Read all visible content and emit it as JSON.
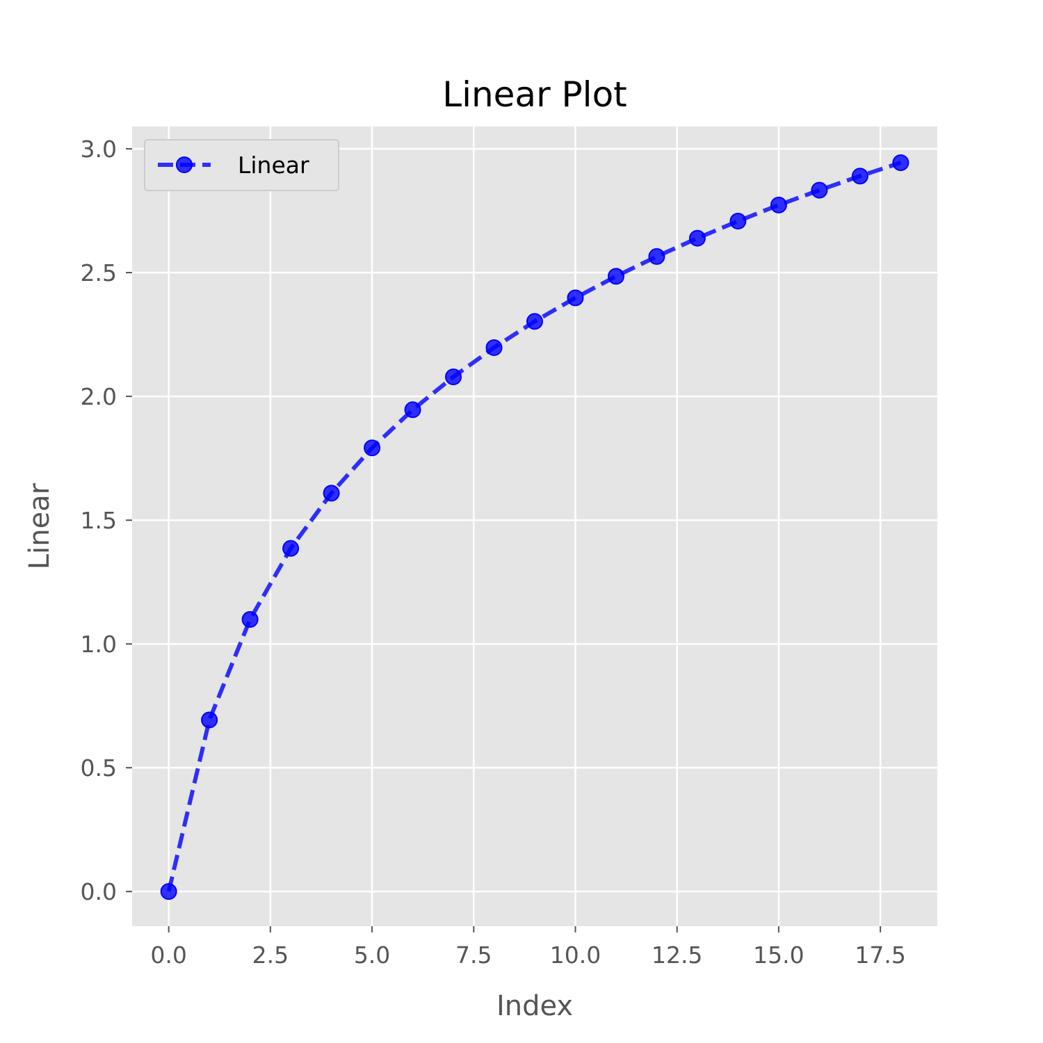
{
  "chart_data": {
    "type": "line",
    "title": "Linear Plot",
    "xlabel": "Index",
    "ylabel": "Linear",
    "xlim": [
      -0.9,
      18.9
    ],
    "ylim": [
      -0.14,
      3.09
    ],
    "xticks": [
      "0.0",
      "2.5",
      "5.0",
      "7.5",
      "10.0",
      "12.5",
      "15.0",
      "17.5"
    ],
    "yticks": [
      "0.0",
      "0.5",
      "1.0",
      "1.5",
      "2.0",
      "2.5",
      "3.0"
    ],
    "grid": true,
    "legend_position": "top-left",
    "series": [
      {
        "name": "Linear",
        "color": "#0000ff",
        "line_style": "dashed",
        "marker": "circle",
        "x": [
          0,
          1,
          2,
          3,
          4,
          5,
          6,
          7,
          8,
          9,
          10,
          11,
          12,
          13,
          14,
          15,
          16,
          17,
          18
        ],
        "y": [
          0.0,
          0.693,
          1.099,
          1.386,
          1.609,
          1.792,
          1.946,
          2.079,
          2.197,
          2.303,
          2.398,
          2.485,
          2.565,
          2.639,
          2.708,
          2.773,
          2.833,
          2.89,
          2.944
        ]
      }
    ]
  },
  "colors": {
    "plot_background": "#e5e5e5",
    "grid": "#ffffff",
    "line": "#0000ff"
  }
}
